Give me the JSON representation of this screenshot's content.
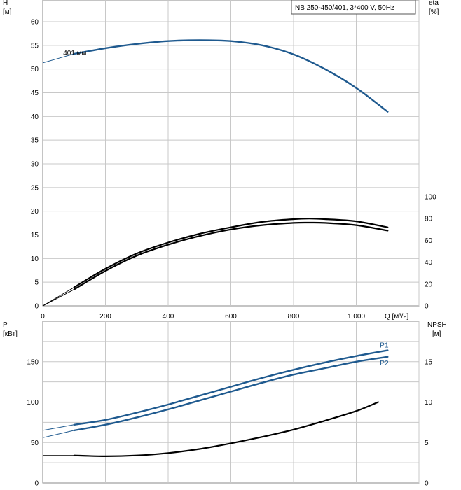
{
  "chart_data": [
    {
      "type": "line",
      "legend_box": "NB 250-450/401, 3*400 V, 50Hz",
      "xlabel": "Q [м³/ч]",
      "x_ticks": [
        "0",
        "200",
        "400",
        "600",
        "800",
        "1 000"
      ],
      "xlim": [
        0,
        1200
      ],
      "left_axis": {
        "label_line1": "H",
        "label_line2": "[м]",
        "ylim": [
          0,
          60
        ],
        "ticks": [
          "0",
          "5",
          "10",
          "15",
          "20",
          "25",
          "30",
          "35",
          "40",
          "45",
          "50",
          "55",
          "60"
        ]
      },
      "right_axis": {
        "label_line1": "eta",
        "label_line2": "[%]",
        "ylim": [
          0,
          100
        ],
        "ticks": [
          "0",
          "20",
          "40",
          "60",
          "80",
          "100"
        ]
      },
      "grid": true,
      "annotations": [
        {
          "text": "401 мм",
          "x": 110,
          "y": 53.5
        }
      ],
      "series": [
        {
          "name": "401 мм",
          "axis": "left",
          "color": "#1f5a8f",
          "x": [
            0,
            100,
            200,
            300,
            400,
            500,
            600,
            700,
            800,
            900,
            1000,
            1100
          ],
          "y": [
            51.3,
            53.2,
            54.4,
            55.3,
            55.9,
            56.1,
            55.9,
            55.0,
            53.1,
            50.0,
            46.0,
            41.0
          ],
          "solid_from_x": 100
        },
        {
          "axis": "right",
          "color": "#000000",
          "x": [
            0,
            100,
            200,
            300,
            400,
            500,
            600,
            700,
            800,
            850,
            900,
            1000,
            1100
          ],
          "y": [
            0,
            15,
            32,
            46,
            56,
            64,
            70,
            74,
            76,
            76.3,
            76,
            74,
            69
          ],
          "solid_from_x": 100
        },
        {
          "axis": "right",
          "color": "#000000",
          "x": [
            0,
            100,
            200,
            300,
            400,
            500,
            600,
            700,
            800,
            850,
            900,
            1000,
            1100
          ],
          "y": [
            0,
            17,
            34,
            48,
            58,
            66,
            72,
            77,
            79.5,
            80,
            79.5,
            77.5,
            72
          ],
          "solid_from_x": 100
        }
      ]
    },
    {
      "type": "line",
      "xlim": [
        0,
        1200
      ],
      "left_axis": {
        "label_line1": "P",
        "label_line2": "[кВт]",
        "ylim": [
          0,
          200
        ],
        "ticks": [
          "0",
          "50",
          "100",
          "150"
        ]
      },
      "right_axis": {
        "label_line1": "NPSH",
        "label_line2": "[м]",
        "ylim": [
          0,
          20
        ],
        "ticks": [
          "0",
          "5",
          "10",
          "15"
        ]
      },
      "grid": true,
      "series": [
        {
          "name": "P1",
          "axis": "left",
          "color": "#1f5a8f",
          "x": [
            0,
            100,
            200,
            300,
            400,
            500,
            600,
            700,
            800,
            900,
            1000,
            1100
          ],
          "y": [
            65,
            72,
            78,
            87,
            97,
            108,
            119,
            130,
            140,
            149,
            157,
            164
          ],
          "solid_from_x": 100
        },
        {
          "name": "P2",
          "axis": "left",
          "color": "#1f5a8f",
          "x": [
            0,
            100,
            200,
            300,
            400,
            500,
            600,
            700,
            800,
            900,
            1000,
            1100
          ],
          "y": [
            56,
            65,
            72,
            81,
            91,
            102,
            113,
            124,
            134,
            142,
            150,
            156
          ],
          "solid_from_x": 100
        },
        {
          "axis": "right",
          "color": "#000000",
          "x": [
            0,
            100,
            200,
            300,
            400,
            500,
            600,
            700,
            800,
            900,
            1000,
            1070
          ],
          "y": [
            3.4,
            3.4,
            3.3,
            3.4,
            3.7,
            4.2,
            4.9,
            5.7,
            6.6,
            7.7,
            8.9,
            10.0
          ],
          "solid_from_x": 100
        }
      ]
    }
  ]
}
